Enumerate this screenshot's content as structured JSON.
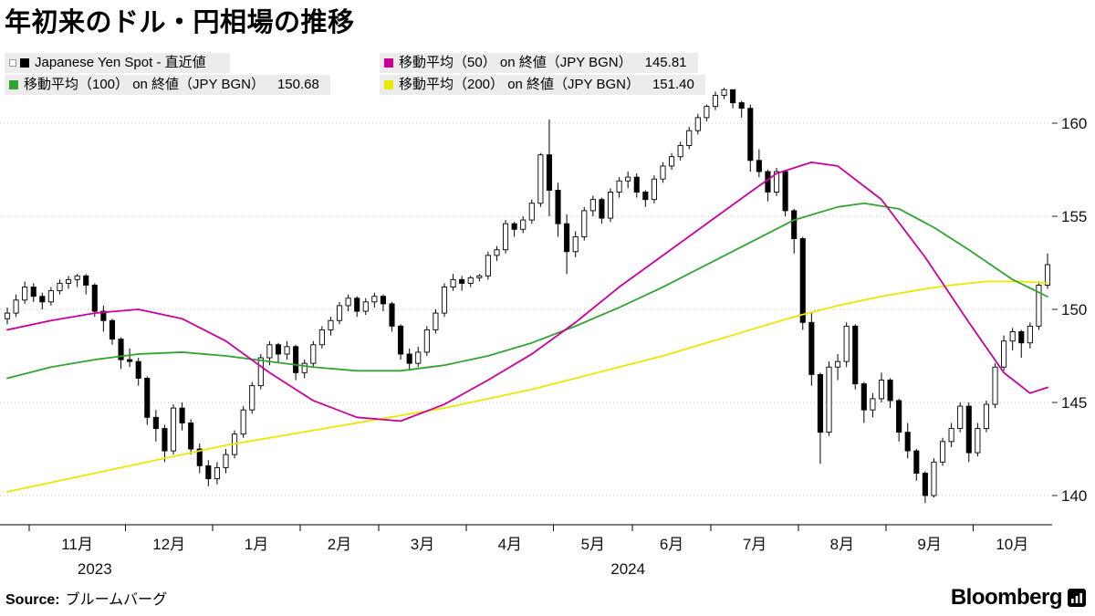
{
  "title": "年初来のドル・円相場の推移",
  "legend": {
    "items": [
      {
        "id": "spot",
        "label": "Japanese Yen Spot - 直近値",
        "value": "",
        "color": "#000000"
      },
      {
        "id": "ma50",
        "label": "移動平均（50） on 終値（JPY BGN）",
        "value": "145.81",
        "color": "#cc0099"
      },
      {
        "id": "ma100",
        "label": "移動平均（100） on 終値（JPY BGN）",
        "value": "150.68",
        "color": "#33a333"
      },
      {
        "id": "ma200",
        "label": "移動平均（200） on 終値（JPY BGN）",
        "value": "151.40",
        "color": "#e8e800"
      }
    ]
  },
  "source": {
    "label": "Source:",
    "value": "ブルームバーグ"
  },
  "brand": {
    "name": "Bloomberg"
  },
  "chart_data": {
    "type": "candlestick",
    "title": "年初来のドル・円相場の推移",
    "ylabel": "JPY",
    "ylim": [
      138.5,
      162.3
    ],
    "candle_color": "#000000",
    "y_axis": {
      "side": "right",
      "ticks": [
        140,
        145,
        150,
        155,
        160
      ]
    },
    "x_axis": {
      "months": [
        "11月",
        "12月",
        "1月",
        "2月",
        "3月",
        "4月",
        "5月",
        "6月",
        "7月",
        "8月",
        "9月",
        "10月"
      ],
      "month_start_index": [
        3,
        14,
        24,
        34,
        43,
        53,
        63,
        72,
        81,
        91,
        101,
        111
      ],
      "years": [
        {
          "label": "2023",
          "center_index": 10
        },
        {
          "label": "2024",
          "center_index": 71
        }
      ]
    },
    "candles": [
      [
        149.5,
        150.1,
        149.2,
        149.8
      ],
      [
        149.8,
        150.8,
        149.6,
        150.5
      ],
      [
        150.5,
        151.5,
        150.3,
        151.2
      ],
      [
        151.2,
        151.4,
        150.4,
        150.7
      ],
      [
        150.7,
        150.9,
        150.0,
        150.4
      ],
      [
        150.4,
        151.2,
        150.2,
        151.0
      ],
      [
        151.0,
        151.6,
        150.8,
        151.4
      ],
      [
        151.4,
        151.8,
        151.1,
        151.6
      ],
      [
        151.6,
        151.9,
        151.2,
        151.8
      ],
      [
        151.8,
        151.9,
        150.8,
        151.3
      ],
      [
        151.3,
        151.4,
        149.6,
        149.9
      ],
      [
        149.9,
        150.2,
        148.8,
        149.4
      ],
      [
        149.4,
        149.5,
        148.1,
        148.4
      ],
      [
        148.4,
        148.5,
        146.8,
        147.3
      ],
      [
        147.3,
        147.9,
        146.9,
        147.2
      ],
      [
        147.2,
        147.4,
        145.9,
        146.3
      ],
      [
        146.3,
        146.4,
        143.8,
        144.2
      ],
      [
        144.2,
        144.6,
        142.9,
        143.6
      ],
      [
        143.6,
        143.8,
        141.8,
        142.4
      ],
      [
        142.4,
        144.9,
        142.2,
        144.7
      ],
      [
        144.7,
        145.0,
        143.5,
        143.9
      ],
      [
        143.9,
        144.1,
        142.2,
        142.5
      ],
      [
        142.5,
        142.8,
        141.2,
        141.6
      ],
      [
        141.6,
        141.9,
        140.5,
        140.9
      ],
      [
        140.9,
        141.8,
        140.6,
        141.5
      ],
      [
        141.5,
        142.5,
        141.2,
        142.2
      ],
      [
        142.2,
        143.5,
        142.0,
        143.3
      ],
      [
        143.3,
        144.8,
        143.1,
        144.6
      ],
      [
        144.6,
        146.1,
        144.4,
        145.9
      ],
      [
        145.9,
        147.6,
        145.7,
        147.4
      ],
      [
        147.4,
        148.3,
        147.0,
        148.1
      ],
      [
        148.1,
        148.2,
        147.1,
        147.6
      ],
      [
        147.6,
        148.3,
        147.3,
        148.0
      ],
      [
        148.0,
        148.1,
        146.2,
        146.6
      ],
      [
        146.6,
        147.3,
        146.3,
        147.1
      ],
      [
        147.1,
        148.3,
        146.9,
        148.1
      ],
      [
        148.1,
        149.1,
        147.9,
        148.9
      ],
      [
        148.9,
        149.6,
        148.6,
        149.4
      ],
      [
        149.4,
        150.4,
        149.2,
        150.2
      ],
      [
        150.2,
        150.8,
        149.9,
        150.6
      ],
      [
        150.6,
        150.7,
        149.6,
        149.9
      ],
      [
        149.9,
        150.6,
        149.7,
        150.4
      ],
      [
        150.4,
        150.9,
        150.1,
        150.7
      ],
      [
        150.7,
        150.8,
        149.9,
        150.3
      ],
      [
        150.3,
        150.4,
        148.8,
        149.1
      ],
      [
        149.1,
        149.2,
        147.3,
        147.6
      ],
      [
        147.6,
        147.9,
        146.7,
        147.1
      ],
      [
        147.1,
        148.0,
        146.9,
        147.7
      ],
      [
        147.7,
        149.1,
        147.5,
        148.9
      ],
      [
        148.9,
        150.0,
        148.7,
        149.8
      ],
      [
        149.8,
        151.4,
        149.6,
        151.2
      ],
      [
        151.2,
        151.9,
        151.0,
        151.6
      ],
      [
        151.6,
        151.8,
        151.0,
        151.4
      ],
      [
        151.4,
        151.8,
        151.2,
        151.7
      ],
      [
        151.7,
        151.9,
        151.5,
        151.8
      ],
      [
        151.8,
        153.1,
        151.6,
        152.9
      ],
      [
        152.9,
        153.4,
        152.6,
        153.2
      ],
      [
        153.2,
        154.8,
        153.0,
        154.6
      ],
      [
        154.6,
        154.7,
        153.9,
        154.3
      ],
      [
        154.3,
        155.0,
        154.1,
        154.8
      ],
      [
        154.8,
        155.9,
        154.6,
        155.7
      ],
      [
        155.7,
        158.4,
        155.5,
        158.3
      ],
      [
        158.3,
        160.2,
        155.0,
        156.4
      ],
      [
        156.4,
        156.8,
        153.9,
        154.6
      ],
      [
        154.6,
        155.1,
        151.9,
        153.1
      ],
      [
        153.1,
        154.2,
        152.8,
        153.9
      ],
      [
        153.9,
        155.5,
        153.7,
        155.3
      ],
      [
        155.3,
        156.1,
        155.0,
        155.9
      ],
      [
        155.9,
        156.0,
        154.6,
        154.9
      ],
      [
        154.9,
        156.5,
        154.7,
        156.3
      ],
      [
        156.3,
        157.1,
        156.0,
        156.9
      ],
      [
        156.9,
        157.4,
        156.5,
        157.1
      ],
      [
        157.1,
        157.3,
        156.0,
        156.3
      ],
      [
        156.3,
        156.4,
        155.5,
        155.9
      ],
      [
        155.9,
        157.2,
        155.7,
        157.0
      ],
      [
        157.0,
        157.9,
        156.8,
        157.7
      ],
      [
        157.7,
        158.4,
        157.5,
        158.2
      ],
      [
        158.2,
        159.0,
        158.0,
        158.8
      ],
      [
        158.8,
        159.8,
        158.6,
        159.6
      ],
      [
        159.6,
        160.5,
        159.4,
        160.3
      ],
      [
        160.3,
        161.0,
        160.1,
        160.9
      ],
      [
        160.9,
        161.7,
        160.7,
        161.5
      ],
      [
        161.5,
        161.9,
        161.3,
        161.8
      ],
      [
        161.8,
        161.8,
        160.8,
        161.1
      ],
      [
        161.1,
        161.2,
        160.3,
        160.8
      ],
      [
        160.8,
        161.0,
        157.4,
        158.0
      ],
      [
        158.0,
        158.6,
        157.1,
        157.4
      ],
      [
        157.4,
        157.5,
        155.8,
        156.3
      ],
      [
        156.3,
        157.6,
        156.1,
        157.4
      ],
      [
        157.4,
        157.5,
        155.0,
        155.3
      ],
      [
        155.3,
        155.4,
        153.0,
        153.8
      ],
      [
        153.8,
        153.9,
        148.9,
        149.3
      ],
      [
        149.3,
        149.8,
        145.9,
        146.5
      ],
      [
        146.5,
        146.6,
        141.7,
        143.4
      ],
      [
        143.4,
        147.2,
        143.2,
        146.9
      ],
      [
        146.9,
        147.6,
        146.2,
        147.2
      ],
      [
        147.2,
        149.3,
        146.9,
        149.1
      ],
      [
        149.1,
        149.2,
        145.7,
        146.0
      ],
      [
        146.0,
        146.1,
        143.9,
        144.6
      ],
      [
        144.6,
        145.5,
        144.2,
        145.2
      ],
      [
        145.2,
        146.6,
        145.0,
        146.2
      ],
      [
        146.2,
        146.3,
        144.7,
        145.1
      ],
      [
        145.1,
        145.2,
        142.9,
        143.4
      ],
      [
        143.4,
        143.9,
        142.0,
        142.4
      ],
      [
        142.4,
        142.5,
        140.8,
        141.2
      ],
      [
        141.2,
        141.3,
        139.6,
        140.0
      ],
      [
        140.0,
        142.0,
        139.9,
        141.8
      ],
      [
        141.8,
        143.1,
        141.6,
        142.9
      ],
      [
        142.9,
        143.9,
        142.6,
        143.6
      ],
      [
        143.6,
        145.0,
        143.4,
        144.8
      ],
      [
        144.8,
        145.0,
        141.8,
        142.3
      ],
      [
        142.3,
        143.9,
        142.1,
        143.6
      ],
      [
        143.6,
        145.1,
        143.4,
        144.9
      ],
      [
        144.9,
        147.1,
        144.7,
        146.9
      ],
      [
        146.9,
        148.6,
        146.7,
        148.3
      ],
      [
        148.3,
        149.0,
        147.8,
        148.8
      ],
      [
        148.8,
        148.9,
        147.4,
        148.2
      ],
      [
        148.2,
        149.3,
        147.9,
        149.1
      ],
      [
        149.1,
        151.5,
        148.9,
        151.3
      ],
      [
        151.3,
        153.0,
        151.1,
        152.4
      ]
    ],
    "series": [
      {
        "id": "ma200",
        "name": "移動平均（200） on 終値（JPY BGN）",
        "last_value": 151.4,
        "color": "#e8e800",
        "points": [
          [
            0,
            140.2
          ],
          [
            5,
            140.7
          ],
          [
            10,
            141.2
          ],
          [
            15,
            141.7
          ],
          [
            20,
            142.2
          ],
          [
            25,
            142.7
          ],
          [
            30,
            143.1
          ],
          [
            35,
            143.5
          ],
          [
            40,
            143.9
          ],
          [
            45,
            144.3
          ],
          [
            50,
            144.7
          ],
          [
            55,
            145.2
          ],
          [
            60,
            145.7
          ],
          [
            65,
            146.3
          ],
          [
            70,
            146.9
          ],
          [
            75,
            147.5
          ],
          [
            80,
            148.2
          ],
          [
            85,
            148.9
          ],
          [
            90,
            149.6
          ],
          [
            95,
            150.2
          ],
          [
            100,
            150.7
          ],
          [
            105,
            151.1
          ],
          [
            108,
            151.3
          ],
          [
            112,
            151.5
          ],
          [
            116,
            151.5
          ],
          [
            119,
            151.4
          ]
        ]
      },
      {
        "id": "ma100",
        "name": "移動平均（100） on 終値（JPY BGN）",
        "last_value": 150.68,
        "color": "#33a333",
        "points": [
          [
            0,
            146.3
          ],
          [
            5,
            146.9
          ],
          [
            10,
            147.3
          ],
          [
            15,
            147.6
          ],
          [
            20,
            147.7
          ],
          [
            25,
            147.5
          ],
          [
            30,
            147.2
          ],
          [
            35,
            146.9
          ],
          [
            40,
            146.7
          ],
          [
            45,
            146.7
          ],
          [
            50,
            147.0
          ],
          [
            55,
            147.5
          ],
          [
            60,
            148.2
          ],
          [
            65,
            149.1
          ],
          [
            70,
            150.1
          ],
          [
            75,
            151.2
          ],
          [
            80,
            152.4
          ],
          [
            85,
            153.6
          ],
          [
            90,
            154.8
          ],
          [
            95,
            155.5
          ],
          [
            98,
            155.7
          ],
          [
            102,
            155.4
          ],
          [
            106,
            154.4
          ],
          [
            110,
            153.2
          ],
          [
            115,
            151.6
          ],
          [
            119,
            150.68
          ]
        ]
      },
      {
        "id": "ma50",
        "name": "移動平均（50） on 終値（JPY BGN）",
        "last_value": 145.81,
        "color": "#cc0099",
        "points": [
          [
            0,
            148.9
          ],
          [
            5,
            149.4
          ],
          [
            10,
            149.8
          ],
          [
            15,
            150.0
          ],
          [
            20,
            149.5
          ],
          [
            25,
            148.3
          ],
          [
            30,
            146.6
          ],
          [
            35,
            145.1
          ],
          [
            40,
            144.2
          ],
          [
            45,
            144.0
          ],
          [
            50,
            144.9
          ],
          [
            55,
            146.2
          ],
          [
            60,
            147.6
          ],
          [
            65,
            149.3
          ],
          [
            70,
            151.2
          ],
          [
            75,
            152.9
          ],
          [
            80,
            154.6
          ],
          [
            85,
            156.3
          ],
          [
            88,
            157.3
          ],
          [
            92,
            157.9
          ],
          [
            95,
            157.7
          ],
          [
            100,
            155.9
          ],
          [
            105,
            152.8
          ],
          [
            110,
            149.3
          ],
          [
            114,
            146.6
          ],
          [
            117,
            145.5
          ],
          [
            119,
            145.81
          ]
        ]
      }
    ]
  }
}
